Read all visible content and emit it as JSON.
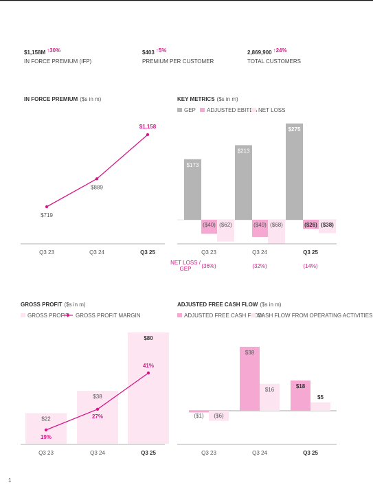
{
  "kpis": [
    {
      "value": "$1,158M",
      "change": "↑30%",
      "label": "IN FORCE PREMIUM (IFP)"
    },
    {
      "value": "$403",
      "change": "↑5%",
      "label": "PREMIUM PER CUSTOMER"
    },
    {
      "value": "2,869,900",
      "change": "↑24%",
      "label": "TOTAL CUSTOMERS"
    }
  ],
  "chart_data": [
    {
      "type": "line",
      "title": "IN FORCE PREMIUM",
      "unit_note": "($s in m)",
      "categories": [
        "Q3 23",
        "Q3 24",
        "Q3 25"
      ],
      "values": [
        719,
        889,
        1158
      ],
      "value_labels": [
        "$719",
        "$889",
        "$1,158"
      ],
      "color": "#d6198a"
    },
    {
      "type": "bar",
      "title": "KEY METRICS",
      "unit_note": "($s in m)",
      "categories": [
        "Q3 23",
        "Q3 24",
        "Q3 25"
      ],
      "series": [
        {
          "name": "GEP",
          "color": "#b5b5b5",
          "values": [
            173,
            213,
            275
          ],
          "value_labels": [
            "$173",
            "$213",
            "$275"
          ]
        },
        {
          "name": "ADJUSTED EBITDA",
          "color": "#f5a9d2",
          "values": [
            -40,
            -49,
            -26
          ],
          "value_labels": [
            "($40)",
            "($49)",
            "($26)"
          ]
        },
        {
          "name": "NET LOSS",
          "color": "#fde4f1",
          "values": [
            -62,
            -68,
            -38
          ],
          "value_labels": [
            "($62)",
            "($68)",
            "($38)"
          ]
        }
      ],
      "ratio_label": [
        "NET LOSS /",
        "GEP"
      ],
      "ratios": [
        -36,
        -32,
        -14
      ],
      "ratio_labels": [
        "(36%)",
        "(32%)",
        "(14%)"
      ]
    },
    {
      "type": "bar_line",
      "title": "GROSS PROFIT",
      "unit_note": "($s in m)",
      "categories": [
        "Q3 23",
        "Q3 24",
        "Q3 25"
      ],
      "series": [
        {
          "name": "GROSS PROFIT",
          "color": "#fde6f2",
          "values": [
            22,
            38,
            80
          ],
          "value_labels": [
            "$22",
            "$38",
            "$80"
          ]
        },
        {
          "name": "GROSS PROFIT MARGIN",
          "color": "#d6198a",
          "values": [
            19,
            27,
            41
          ],
          "value_labels": [
            "19%",
            "27%",
            "41%"
          ]
        }
      ]
    },
    {
      "type": "bar",
      "title": "ADJUSTED FREE CASH FLOW",
      "unit_note": "($s in m)",
      "categories": [
        "Q3 23",
        "Q3 24",
        "Q3 25"
      ],
      "series": [
        {
          "name": "ADJUSTED FREE CASH FLOW",
          "color": "#f5a9d2",
          "values": [
            -1,
            38,
            18
          ],
          "value_labels": [
            "($1)",
            "$38",
            "$18"
          ]
        },
        {
          "name": "CASH FLOW FROM OPERATING ACTIVITIES",
          "color": "#fde4f1",
          "values": [
            -6,
            16,
            5
          ],
          "value_labels": [
            "($6)",
            "$16",
            "$5"
          ]
        }
      ]
    }
  ],
  "page_number": "1"
}
